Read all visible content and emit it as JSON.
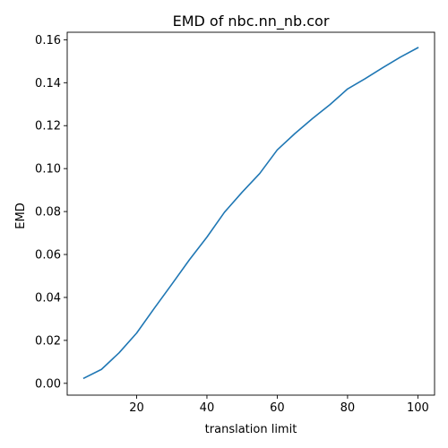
{
  "chart_data": {
    "type": "line",
    "title": "EMD of nbc.nn_nb.cor",
    "xlabel": "translation limit",
    "ylabel": "EMD",
    "xlim": [
      0.25,
      104.75
    ],
    "ylim": [
      -0.0055,
      0.1635
    ],
    "x_ticks": [
      20,
      40,
      60,
      80,
      100
    ],
    "x_tick_labels": [
      "20",
      "40",
      "60",
      "80",
      "100"
    ],
    "y_ticks": [
      0.0,
      0.02,
      0.04,
      0.06,
      0.08,
      0.1,
      0.12,
      0.14,
      0.16
    ],
    "y_tick_labels": [
      "0.00",
      "0.02",
      "0.04",
      "0.06",
      "0.08",
      "0.10",
      "0.12",
      "0.14",
      "0.16"
    ],
    "grid": false,
    "series": [
      {
        "color": "#1f77b4",
        "x": [
          5,
          10,
          15,
          20,
          25,
          30,
          35,
          40,
          45,
          50,
          55,
          60,
          65,
          70,
          75,
          80,
          85,
          90,
          95,
          100
        ],
        "y": [
          0.0024,
          0.0065,
          0.0142,
          0.0234,
          0.0349,
          0.0461,
          0.0575,
          0.0681,
          0.0797,
          0.089,
          0.0977,
          0.1087,
          0.1163,
          0.1233,
          0.1298,
          0.1371,
          0.1419,
          0.147,
          0.1519,
          0.1563
        ]
      }
    ]
  }
}
